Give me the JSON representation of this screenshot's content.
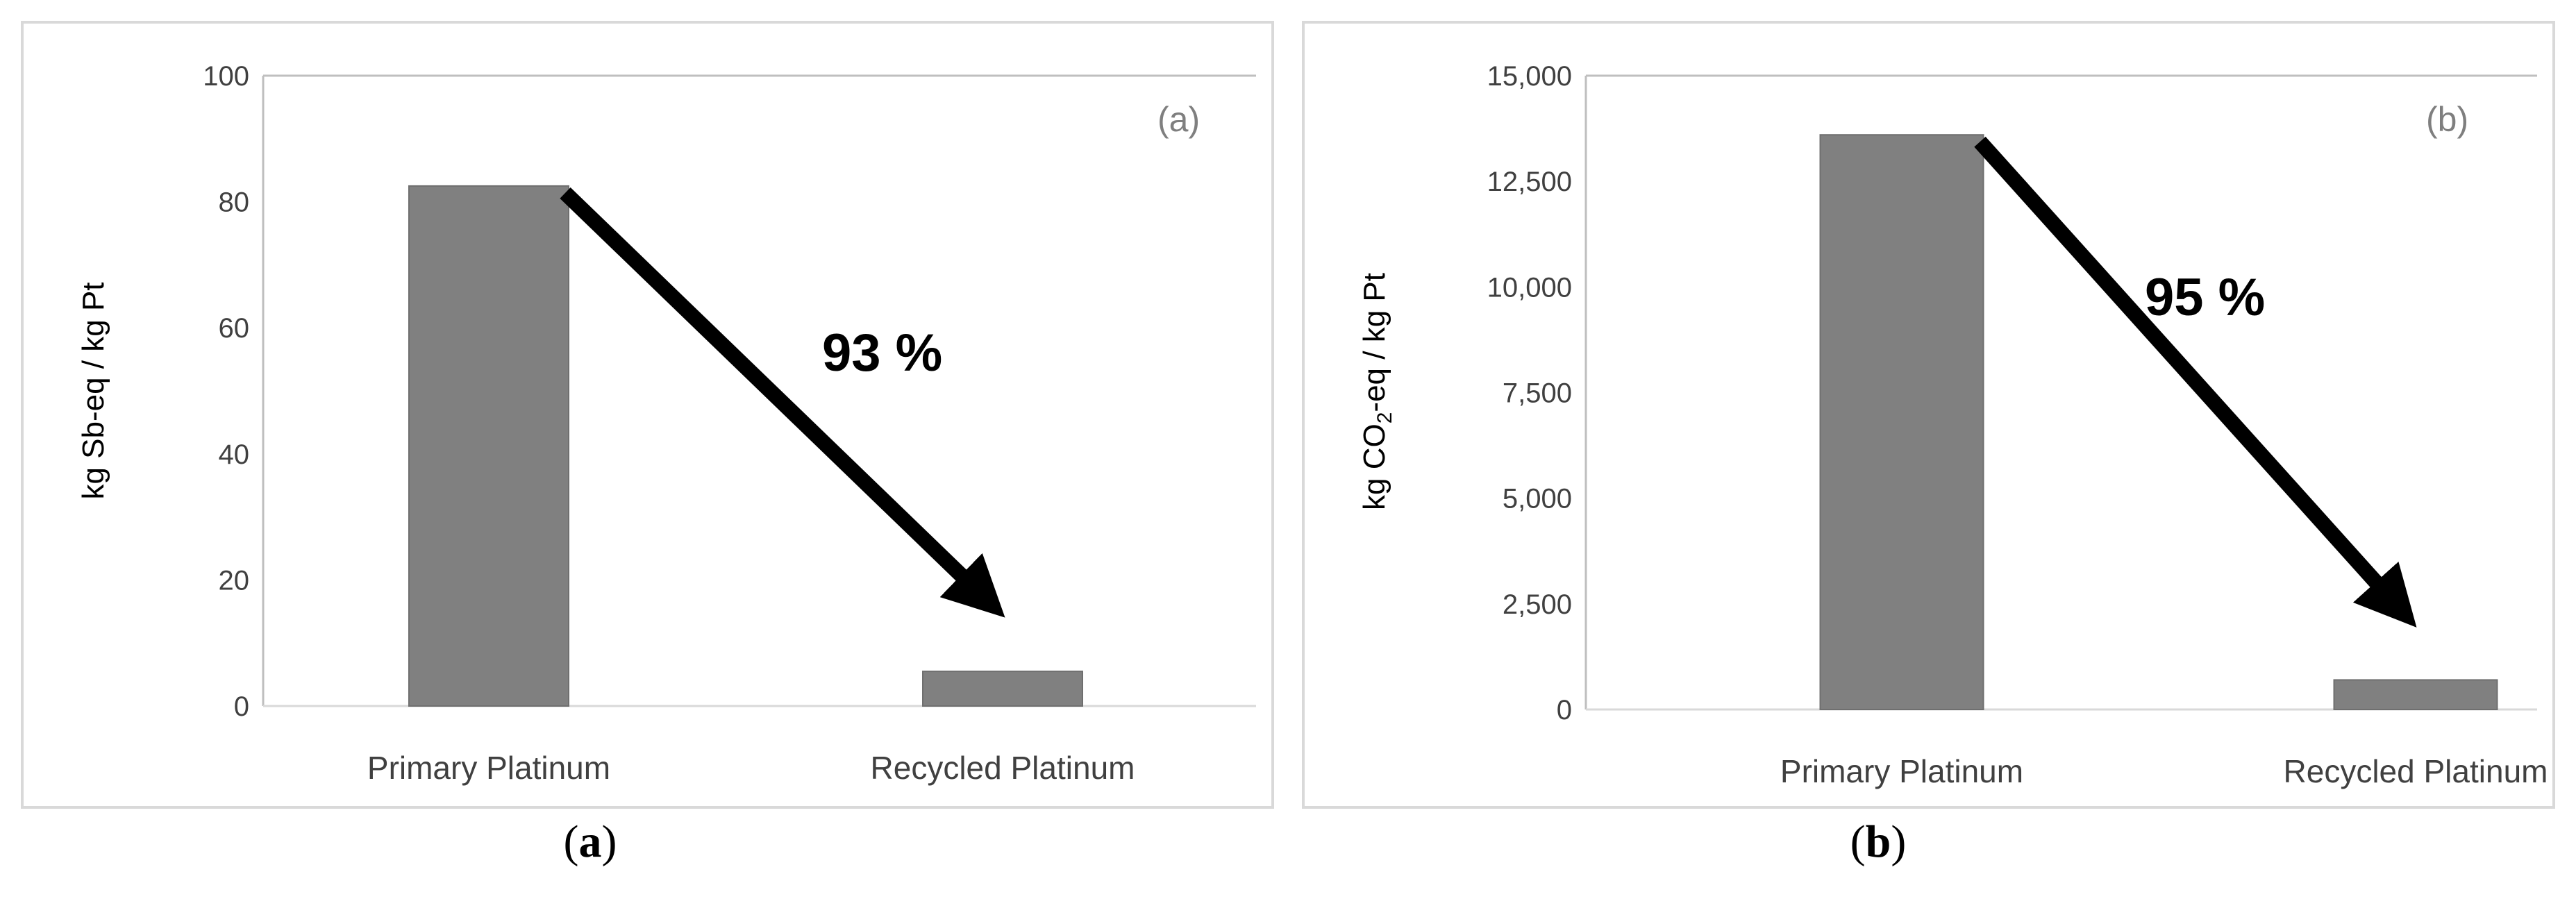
{
  "chart_data": [
    {
      "type": "bar",
      "panel_tag": "(a)",
      "caption": "a",
      "categories": [
        "Primary Platinum",
        "Recycled Platinum"
      ],
      "values": [
        82.5,
        5.5
      ],
      "ylabel": "kg Sb-eq / kg Pt",
      "ylim": [
        0,
        100
      ],
      "yticks": [
        0,
        20,
        40,
        60,
        80,
        100
      ],
      "ytick_labels": [
        "0",
        "20",
        "40",
        "60",
        "80",
        "100"
      ],
      "grid": false,
      "annotation": "93 %",
      "bar_color": "#808080"
    },
    {
      "type": "bar",
      "panel_tag": "(b)",
      "caption": "b",
      "categories": [
        "Primary Platinum",
        "Recycled Platinum"
      ],
      "values": [
        13600,
        700
      ],
      "ylabel_prefix": "kg CO",
      "ylabel_sub": "2",
      "ylabel_suffix": "-eq / kg Pt",
      "ylim": [
        0,
        15000
      ],
      "yticks": [
        0,
        2500,
        5000,
        7500,
        10000,
        12500,
        15000
      ],
      "ytick_labels": [
        "0",
        "2,500",
        "5,000",
        "7,500",
        "10,000",
        "12,500",
        "15,000"
      ],
      "grid": false,
      "annotation": "95 %",
      "bar_color": "#808080"
    }
  ]
}
